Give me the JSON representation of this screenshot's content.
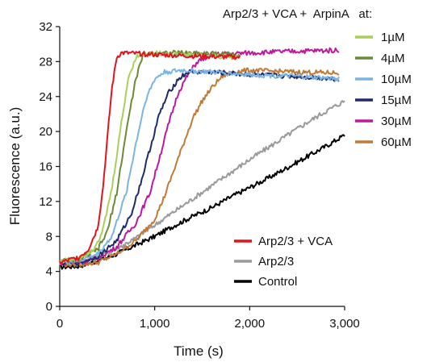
{
  "chart_data": {
    "type": "line",
    "title": "",
    "xlabel": "Time (s)",
    "ylabel": "Fluorescence (a.u.)",
    "xlim": [
      0,
      3000
    ],
    "ylim": [
      0,
      32
    ],
    "xticks": [
      0,
      1000,
      2000,
      3000
    ],
    "xtick_labels": [
      "0",
      "1,000",
      "2,000",
      "3,000"
    ],
    "yticks": [
      0,
      4,
      8,
      12,
      16,
      20,
      24,
      28,
      32
    ],
    "ytick_labels": [
      "0",
      "4",
      "8",
      "12",
      "16",
      "20",
      "24",
      "28",
      "32"
    ],
    "grid": false,
    "legends": [
      {
        "placement": "top-right",
        "heading": "Arp2/3 + VCA +  ArpinA   at:",
        "entries": [
          "1µM",
          "4µM",
          "10µM",
          "15µM",
          "30µM",
          "60µM"
        ]
      },
      {
        "placement": "bottom-right",
        "entries": [
          "Arp2/3 + VCA",
          "Arp2/3",
          "Control"
        ]
      }
    ],
    "series": [
      {
        "name": "Arp2/3 + VCA",
        "color": "#e0141e",
        "x": [
          0,
          200,
          300,
          400,
          450,
          500,
          550,
          600,
          650,
          1000,
          1500,
          1900
        ],
        "y": [
          5.0,
          5.6,
          6.5,
          9.0,
          13.0,
          19.0,
          25.0,
          28.5,
          29.0,
          28.8,
          28.6,
          28.5
        ]
      },
      {
        "name": "1µM",
        "color": "#a8cf5a",
        "x": [
          0,
          200,
          350,
          450,
          550,
          650,
          720,
          800,
          900,
          1300,
          1900
        ],
        "y": [
          5.2,
          5.5,
          6.5,
          8.5,
          13.5,
          21.0,
          26.0,
          28.5,
          29.0,
          28.8,
          28.5
        ]
      },
      {
        "name": "4µM",
        "color": "#6a8a36",
        "x": [
          0,
          200,
          400,
          500,
          600,
          700,
          800,
          880,
          950,
          1400,
          1900
        ],
        "y": [
          5.2,
          5.3,
          6.5,
          8.5,
          13.0,
          20.0,
          26.0,
          28.8,
          29.0,
          29.0,
          28.8
        ]
      },
      {
        "name": "10µM",
        "color": "#7ab4e4",
        "x": [
          0,
          200,
          400,
          550,
          700,
          800,
          900,
          1000,
          1100,
          1300,
          1600,
          2000,
          2500,
          2950
        ],
        "y": [
          5.0,
          5.2,
          6.0,
          8.0,
          13.0,
          18.5,
          23.5,
          26.0,
          26.8,
          27.0,
          26.8,
          26.5,
          26.3,
          26.0
        ]
      },
      {
        "name": "15µM",
        "color": "#1e2a6c",
        "x": [
          0,
          200,
          400,
          600,
          750,
          850,
          950,
          1050,
          1150,
          1250,
          1350,
          1600,
          2000,
          2500,
          2950
        ],
        "y": [
          5.0,
          5.0,
          5.7,
          7.5,
          10.5,
          14.0,
          18.0,
          22.0,
          24.5,
          26.0,
          26.8,
          26.8,
          26.5,
          26.3,
          26.0
        ]
      },
      {
        "name": "30µM",
        "color": "#c0189c",
        "x": [
          0,
          200,
          400,
          600,
          800,
          950,
          1050,
          1150,
          1250,
          1350,
          1450,
          1600,
          2000,
          2500,
          2950
        ],
        "y": [
          5.0,
          5.0,
          5.5,
          6.8,
          9.5,
          13.0,
          17.0,
          21.0,
          24.5,
          26.5,
          28.0,
          28.8,
          29.0,
          29.2,
          29.3
        ]
      },
      {
        "name": "60µM",
        "color": "#c07a36",
        "x": [
          0,
          200,
          400,
          600,
          800,
          1000,
          1100,
          1200,
          1300,
          1400,
          1500,
          1600,
          1700,
          1800,
          2000,
          2500,
          2950
        ],
        "y": [
          4.8,
          4.8,
          5.0,
          6.0,
          7.5,
          10.0,
          12.5,
          15.5,
          18.5,
          21.5,
          23.5,
          25.0,
          26.2,
          26.8,
          27.0,
          26.8,
          26.7
        ]
      },
      {
        "name": "Arp2/3",
        "color": "#9a9a9a",
        "x": [
          0,
          200,
          400,
          600,
          800,
          1000,
          1200,
          1400,
          1600,
          1800,
          2000,
          2200,
          2400,
          2600,
          2800,
          3000
        ],
        "y": [
          5.0,
          5.0,
          5.6,
          6.6,
          7.8,
          9.3,
          10.8,
          12.3,
          13.8,
          15.3,
          16.8,
          18.2,
          19.6,
          21.0,
          22.3,
          23.5
        ]
      },
      {
        "name": "Control",
        "color": "#000000",
        "x": [
          0,
          200,
          400,
          600,
          800,
          1000,
          1200,
          1400,
          1600,
          1800,
          2000,
          2200,
          2400,
          2600,
          2800,
          3000
        ],
        "y": [
          4.5,
          4.6,
          5.2,
          6.0,
          7.0,
          8.0,
          9.2,
          10.3,
          11.3,
          12.5,
          13.6,
          14.7,
          15.9,
          17.1,
          18.3,
          19.6
        ]
      }
    ]
  }
}
